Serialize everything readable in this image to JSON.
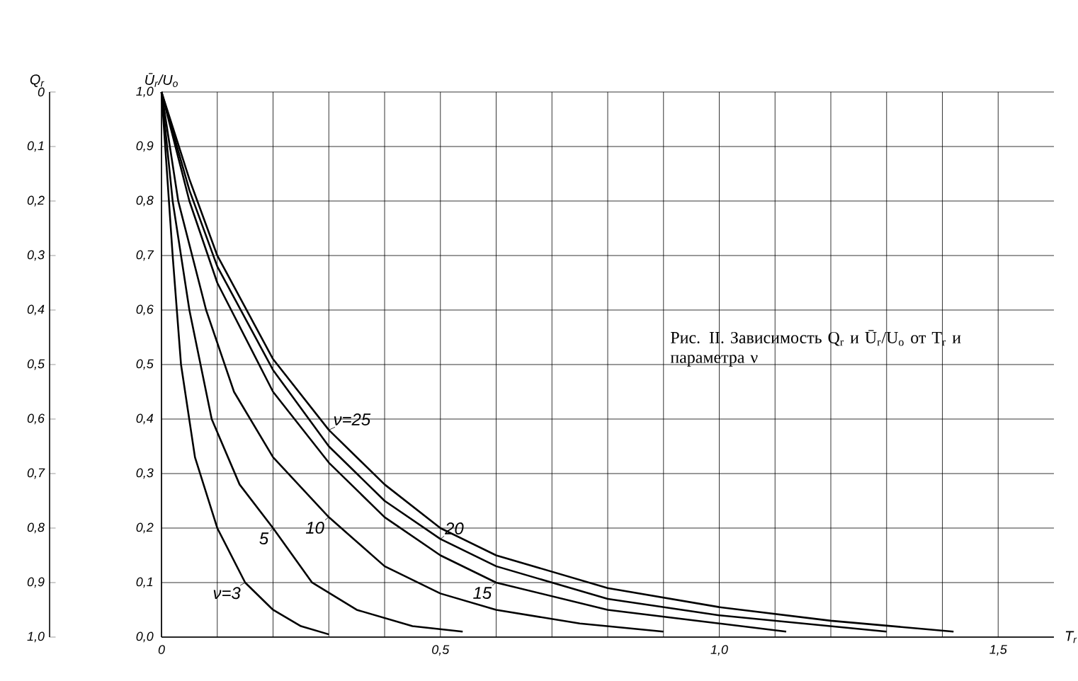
{
  "chart_data": {
    "type": "line",
    "xlabel": "T$_{r}$",
    "ylabel": "Ū$_{r}$/U$_{o}$",
    "y2label": "Q$_{r}$",
    "xlim": [
      0,
      1.6
    ],
    "ylim": [
      0,
      1.0
    ],
    "y2lim": [
      1.0,
      0
    ],
    "xticks": [
      0,
      {
        "value": 0.5,
        "label": "0,5"
      },
      {
        "value": 1.0,
        "label": "1,0"
      },
      {
        "value": 1.5,
        "label": "1,5"
      }
    ],
    "yticks": [
      {
        "value": 0,
        "label": "0,0"
      },
      {
        "value": 0.1,
        "label": "0,1"
      },
      {
        "value": 0.2,
        "label": "0,2"
      },
      {
        "value": 0.3,
        "label": "0,3"
      },
      {
        "value": 0.4,
        "label": "0,4"
      },
      {
        "value": 0.5,
        "label": "0,5"
      },
      {
        "value": 0.6,
        "label": "0,6"
      },
      {
        "value": 0.7,
        "label": "0,7"
      },
      {
        "value": 0.8,
        "label": "0,8"
      },
      {
        "value": 0.9,
        "label": "0,9"
      },
      {
        "value": 1.0,
        "label": "1,0"
      }
    ],
    "y2ticks": [
      0,
      {
        "value": 0.1,
        "label": "0,1"
      },
      {
        "value": 0.2,
        "label": "0,2"
      },
      {
        "value": 0.3,
        "label": "0,3"
      },
      {
        "value": 0.4,
        "label": "0,4"
      },
      {
        "value": 0.5,
        "label": "0,5"
      },
      {
        "value": 0.6,
        "label": "0,6"
      },
      {
        "value": 0.7,
        "label": "0,7"
      },
      {
        "value": 0.8,
        "label": "0,8"
      },
      {
        "value": 0.9,
        "label": "0,9"
      },
      {
        "value": 1.0,
        "label": "1,0"
      }
    ],
    "grid": true,
    "marker": "none",
    "line_style": "solid",
    "annotations": [
      "Рис. II. Зависимость Q$_{r}$ и Ū$_{r}$/U$_{o}$ от T$_{r}$ и параметра ν"
    ],
    "series": [
      {
        "name": "ν=3",
        "color": "#000000",
        "x": [
          0,
          0.01,
          0.02,
          0.035,
          0.06,
          0.1,
          0.15,
          0.2,
          0.25,
          0.3
        ],
        "values": [
          1.0,
          0.85,
          0.7,
          0.5,
          0.33,
          0.2,
          0.1,
          0.05,
          0.02,
          0.005
        ]
      },
      {
        "name": "5",
        "color": "#000000",
        "x": [
          0,
          0.02,
          0.05,
          0.09,
          0.14,
          0.2,
          0.27,
          0.35,
          0.45,
          0.54
        ],
        "values": [
          1.0,
          0.8,
          0.6,
          0.4,
          0.28,
          0.2,
          0.1,
          0.05,
          0.02,
          0.01
        ]
      },
      {
        "name": "10",
        "color": "#000000",
        "x": [
          0,
          0.03,
          0.08,
          0.13,
          0.2,
          0.3,
          0.4,
          0.5,
          0.6,
          0.75,
          0.9
        ],
        "values": [
          1.0,
          0.8,
          0.6,
          0.45,
          0.33,
          0.22,
          0.13,
          0.08,
          0.05,
          0.025,
          0.01
        ]
      },
      {
        "name": "15",
        "color": "#000000",
        "x": [
          0,
          0.05,
          0.1,
          0.2,
          0.3,
          0.4,
          0.5,
          0.6,
          0.8,
          1.0,
          1.12
        ],
        "values": [
          1.0,
          0.8,
          0.65,
          0.45,
          0.32,
          0.22,
          0.15,
          0.1,
          0.05,
          0.025,
          0.01
        ]
      },
      {
        "name": "20",
        "color": "#000000",
        "x": [
          0,
          0.05,
          0.1,
          0.2,
          0.3,
          0.4,
          0.5,
          0.6,
          0.8,
          1.0,
          1.3
        ],
        "values": [
          1.0,
          0.82,
          0.68,
          0.49,
          0.35,
          0.25,
          0.18,
          0.13,
          0.07,
          0.04,
          0.01
        ]
      },
      {
        "name": "ν=25",
        "color": "#000000",
        "x": [
          0,
          0.05,
          0.1,
          0.2,
          0.3,
          0.4,
          0.5,
          0.6,
          0.8,
          1.0,
          1.2,
          1.42
        ],
        "values": [
          1.0,
          0.84,
          0.7,
          0.51,
          0.38,
          0.28,
          0.2,
          0.15,
          0.09,
          0.055,
          0.03,
          0.01
        ]
      }
    ]
  }
}
